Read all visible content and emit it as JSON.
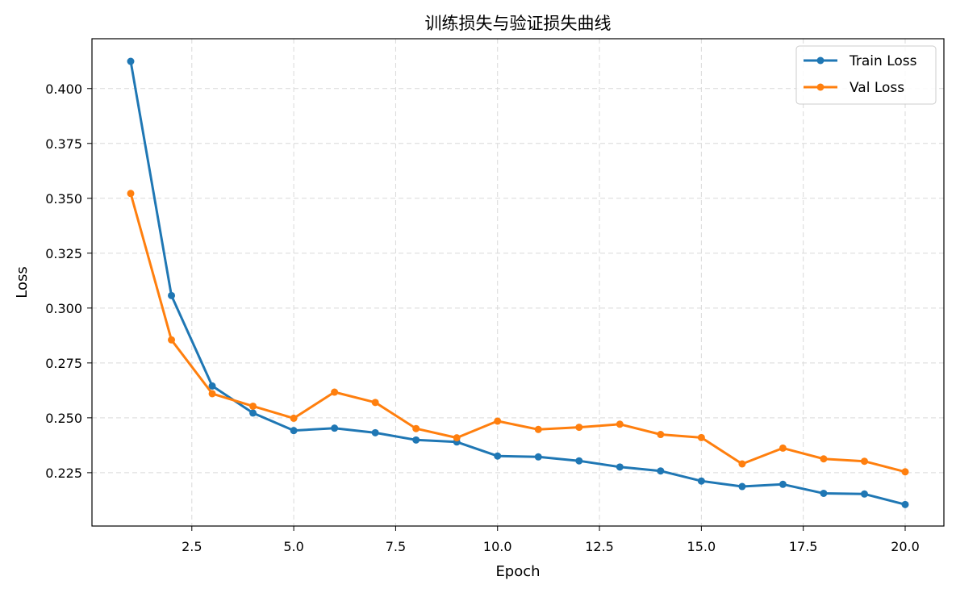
{
  "chart_data": {
    "type": "line",
    "title": "训练损失与验证损失曲线",
    "xlabel": "Epoch",
    "ylabel": "Loss",
    "xlim": [
      0.05,
      20.95
    ],
    "ylim": [
      0.2007,
      0.4227
    ],
    "xticks": [
      2.5,
      5.0,
      7.5,
      10.0,
      12.5,
      15.0,
      17.5,
      20.0
    ],
    "xtick_labels": [
      "2.5",
      "5.0",
      "7.5",
      "10.0",
      "12.5",
      "15.0",
      "17.5",
      "20.0"
    ],
    "yticks": [
      0.225,
      0.25,
      0.275,
      0.3,
      0.325,
      0.35,
      0.375,
      0.4
    ],
    "ytick_labels": [
      "0.225",
      "0.250",
      "0.275",
      "0.300",
      "0.325",
      "0.350",
      "0.375",
      "0.400"
    ],
    "grid": true,
    "legend_position": "top-right",
    "x": [
      1,
      2,
      3,
      4,
      5,
      6,
      7,
      8,
      9,
      10,
      11,
      12,
      13,
      14,
      15,
      16,
      17,
      18,
      19,
      20
    ],
    "series": [
      {
        "name": "Train Loss",
        "color": "#1f77b4",
        "values": [
          0.4124,
          0.3057,
          0.2645,
          0.2522,
          0.2442,
          0.2453,
          0.2432,
          0.2399,
          0.239,
          0.2326,
          0.2322,
          0.2304,
          0.2276,
          0.2258,
          0.2212,
          0.2187,
          0.2197,
          0.2156,
          0.2153,
          0.2105
        ]
      },
      {
        "name": "Val Loss",
        "color": "#ff7f0e",
        "values": [
          0.3522,
          0.2855,
          0.261,
          0.2553,
          0.2498,
          0.2617,
          0.257,
          0.2451,
          0.2409,
          0.2485,
          0.2447,
          0.2457,
          0.2471,
          0.2424,
          0.241,
          0.229,
          0.2362,
          0.2313,
          0.2302,
          0.2254
        ]
      }
    ]
  }
}
